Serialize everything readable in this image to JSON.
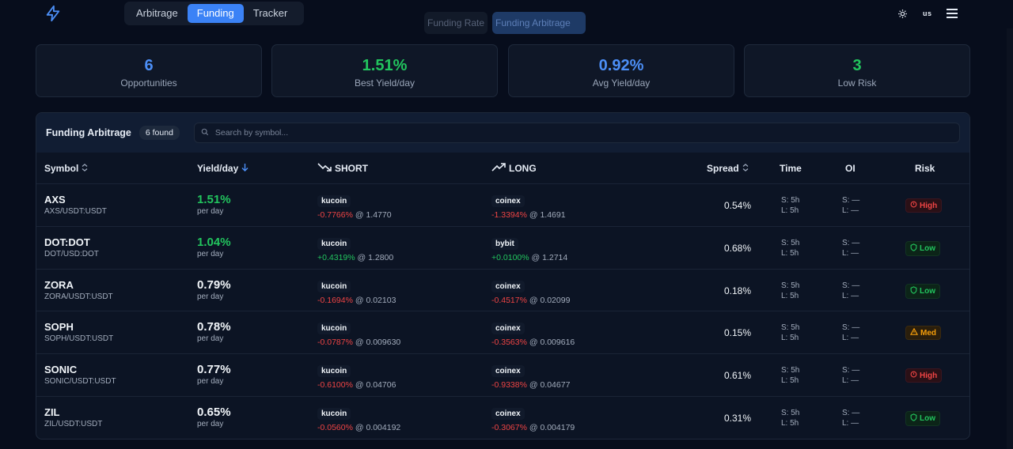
{
  "header": {
    "nav_tabs": [
      {
        "label": "Arbitrage",
        "active": false
      },
      {
        "label": "Funding",
        "active": true
      },
      {
        "label": "Tracker",
        "active": false
      }
    ],
    "language": "us",
    "sub_tabs": [
      {
        "label": "Funding Rate",
        "active": false
      },
      {
        "label": "Funding Arbitrage",
        "active": true
      }
    ]
  },
  "stats": [
    {
      "value": "6",
      "label": "Opportunities",
      "color": "#4c8ff7"
    },
    {
      "value": "1.51%",
      "label": "Best Yield/day",
      "color": "#22c55e"
    },
    {
      "value": "0.92%",
      "label": "Avg Yield/day",
      "color": "#4c8ff7"
    },
    {
      "value": "3",
      "label": "Low Risk",
      "color": "#22c55e"
    }
  ],
  "table": {
    "title": "Funding Arbitrage",
    "found": "6 found",
    "search_placeholder": "Search by symbol...",
    "columns": {
      "symbol": "Symbol",
      "yield": "Yield/day",
      "short": "SHORT",
      "long": "LONG",
      "spread": "Spread",
      "time": "Time",
      "oi": "OI",
      "risk": "Risk"
    },
    "rows": [
      {
        "symbol": "AXS",
        "pair": "AXS/USDT:USDT",
        "yield": "1.51%",
        "yield_color": "green",
        "per_day": "per day",
        "short_ex": "kucoin",
        "short_rate": "-0.7766%",
        "short_rate_color": "red",
        "short_price": "@ 1.4770",
        "long_ex": "coinex",
        "long_rate": "-1.3394%",
        "long_rate_color": "red",
        "long_price": "@ 1.4691",
        "spread": "0.54%",
        "time_s": "S: 5h",
        "time_l": "L: 5h",
        "oi_s": "S: —",
        "oi_l": "L: —",
        "risk": "High",
        "risk_level": "high"
      },
      {
        "symbol": "DOT:DOT",
        "pair": "DOT/USD:DOT",
        "yield": "1.04%",
        "yield_color": "green",
        "per_day": "per day",
        "short_ex": "kucoin",
        "short_rate": "+0.4319%",
        "short_rate_color": "green",
        "short_price": "@ 1.2800",
        "long_ex": "bybit",
        "long_rate": "+0.0100%",
        "long_rate_color": "green",
        "long_price": "@ 1.2714",
        "spread": "0.68%",
        "time_s": "S: 5h",
        "time_l": "L: 5h",
        "oi_s": "S: —",
        "oi_l": "L: —",
        "risk": "Low",
        "risk_level": "low"
      },
      {
        "symbol": "ZORA",
        "pair": "ZORA/USDT:USDT",
        "yield": "0.79%",
        "yield_color": "white",
        "per_day": "per day",
        "short_ex": "kucoin",
        "short_rate": "-0.1694%",
        "short_rate_color": "red",
        "short_price": "@ 0.02103",
        "long_ex": "coinex",
        "long_rate": "-0.4517%",
        "long_rate_color": "red",
        "long_price": "@ 0.02099",
        "spread": "0.18%",
        "time_s": "S: 5h",
        "time_l": "L: 5h",
        "oi_s": "S: —",
        "oi_l": "L: —",
        "risk": "Low",
        "risk_level": "low"
      },
      {
        "symbol": "SOPH",
        "pair": "SOPH/USDT:USDT",
        "yield": "0.78%",
        "yield_color": "white",
        "per_day": "per day",
        "short_ex": "kucoin",
        "short_rate": "-0.0787%",
        "short_rate_color": "red",
        "short_price": "@ 0.009630",
        "long_ex": "coinex",
        "long_rate": "-0.3563%",
        "long_rate_color": "red",
        "long_price": "@ 0.009616",
        "spread": "0.15%",
        "time_s": "S: 5h",
        "time_l": "L: 5h",
        "oi_s": "S: —",
        "oi_l": "L: —",
        "risk": "Med",
        "risk_level": "med"
      },
      {
        "symbol": "SONIC",
        "pair": "SONIC/USDT:USDT",
        "yield": "0.77%",
        "yield_color": "white",
        "per_day": "per day",
        "short_ex": "kucoin",
        "short_rate": "-0.6100%",
        "short_rate_color": "red",
        "short_price": "@ 0.04706",
        "long_ex": "coinex",
        "long_rate": "-0.9338%",
        "long_rate_color": "red",
        "long_price": "@ 0.04677",
        "spread": "0.61%",
        "time_s": "S: 5h",
        "time_l": "L: 5h",
        "oi_s": "S: —",
        "oi_l": "L: —",
        "risk": "High",
        "risk_level": "high"
      },
      {
        "symbol": "ZIL",
        "pair": "ZIL/USDT:USDT",
        "yield": "0.65%",
        "yield_color": "white",
        "per_day": "per day",
        "short_ex": "kucoin",
        "short_rate": "-0.0560%",
        "short_rate_color": "red",
        "short_price": "@ 0.004192",
        "long_ex": "coinex",
        "long_rate": "-0.3067%",
        "long_rate_color": "red",
        "long_price": "@ 0.004179",
        "spread": "0.31%",
        "time_s": "S: 5h",
        "time_l": "L: 5h",
        "oi_s": "S: —",
        "oi_l": "L: —",
        "risk": "Low",
        "risk_level": "low"
      }
    ]
  }
}
